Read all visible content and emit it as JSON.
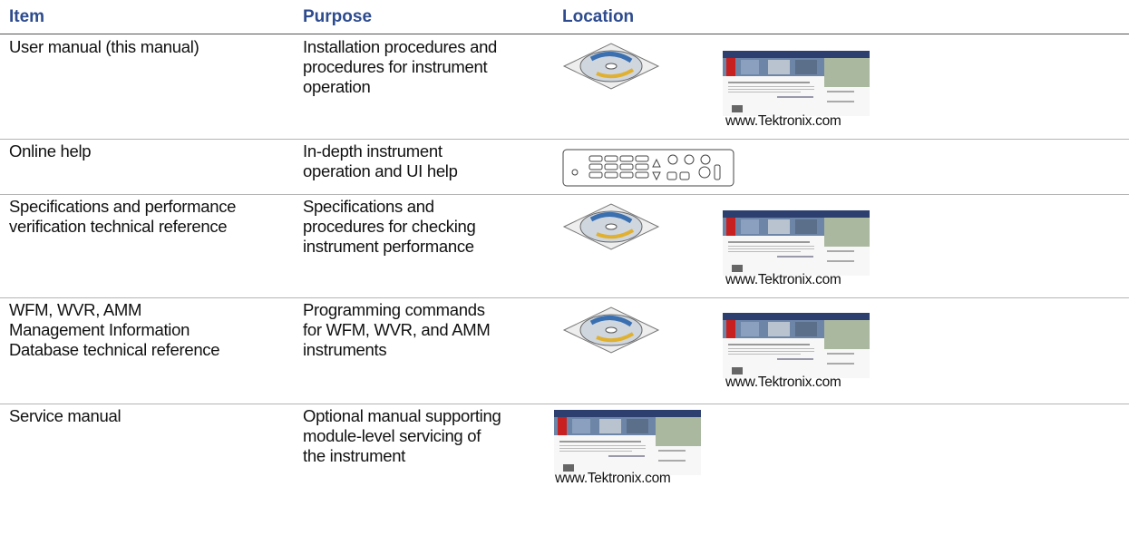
{
  "table": {
    "headers": [
      "Item",
      "Purpose",
      "Location"
    ],
    "rows": [
      {
        "item": "User manual (this manual)",
        "purpose": "Installation procedures and procedures for instrument operation",
        "location_caption": "www.Tektronix.com"
      },
      {
        "item": "Online help",
        "purpose": "In-depth instrument operation and UI help"
      },
      {
        "item": "Specifications and performance verification technical reference",
        "purpose": "Specifications and procedures for checking instrument performance",
        "location_caption": "www.Tektronix.com"
      },
      {
        "item": "WFM, WVR, AMM Management Information Database technical reference",
        "purpose": "Programming commands for WFM, WVR, and AMM instruments",
        "location_caption": "www.Tektronix.com"
      },
      {
        "item": "Service manual",
        "purpose": "Optional manual supporting module-level servicing of the instrument",
        "location_caption": "www.Tektronix.com"
      }
    ]
  }
}
